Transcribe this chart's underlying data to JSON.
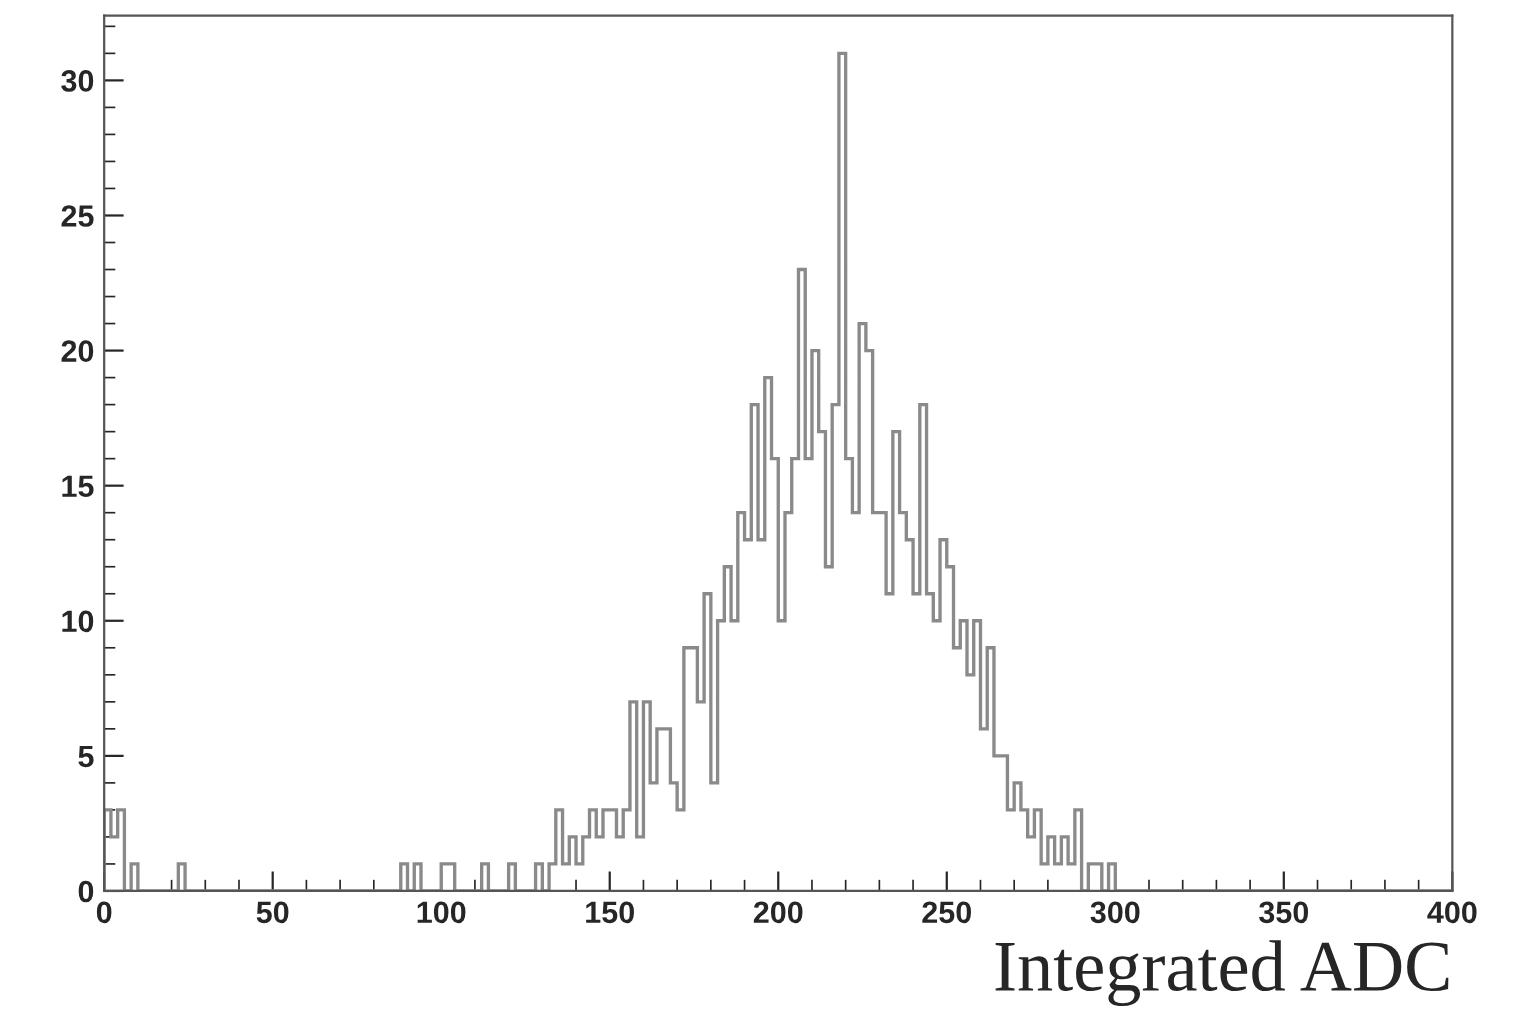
{
  "chart_data": {
    "type": "histogram",
    "xlabel": "Integrated ADC",
    "color": "#8a8a8a",
    "bins": [
      0,
      2,
      4,
      6,
      8,
      10,
      12,
      14,
      16,
      18,
      20,
      22,
      24,
      26,
      28,
      30,
      32,
      34,
      36,
      38,
      40,
      42,
      44,
      46,
      48,
      50,
      52,
      54,
      56,
      58,
      60,
      62,
      64,
      66,
      68,
      70,
      72,
      74,
      76,
      78,
      80,
      82,
      84,
      86,
      88,
      90,
      92,
      94,
      96,
      98,
      100,
      102,
      104,
      106,
      108,
      110,
      112,
      114,
      116,
      118,
      120,
      122,
      124,
      126,
      128,
      130,
      132,
      134,
      136,
      138,
      140,
      142,
      144,
      146,
      148,
      150,
      152,
      154,
      156,
      158,
      160,
      162,
      164,
      166,
      168,
      170,
      172,
      174,
      176,
      178,
      180,
      182,
      184,
      186,
      188,
      190,
      192,
      194,
      196,
      198,
      200,
      202,
      204,
      206,
      208,
      210,
      212,
      214,
      216,
      218,
      220,
      222,
      224,
      226,
      228,
      230,
      232,
      234,
      236,
      238,
      240,
      242,
      244,
      246,
      248,
      250,
      252,
      254,
      256,
      258,
      260,
      262,
      264,
      266,
      268,
      270,
      272,
      274,
      276,
      278,
      280,
      282,
      284,
      286,
      288,
      290,
      292,
      294,
      296,
      298,
      300,
      302,
      304,
      306,
      308,
      310,
      312,
      314,
      316,
      318,
      320,
      322,
      324,
      326,
      328,
      330,
      332,
      334,
      336,
      338,
      340,
      342,
      344,
      346,
      348,
      350,
      352,
      354,
      356,
      358,
      360,
      362,
      364,
      366,
      368,
      370,
      372,
      374,
      376,
      378,
      380,
      382,
      384,
      386,
      388,
      390,
      392,
      394,
      396,
      398,
      400
    ],
    "values": [
      3,
      2,
      3,
      0,
      1,
      0,
      0,
      0,
      0,
      0,
      0,
      1,
      0,
      0,
      0,
      0,
      0,
      0,
      0,
      0,
      0,
      0,
      0,
      0,
      0,
      0,
      0,
      0,
      0,
      0,
      0,
      0,
      0,
      0,
      0,
      0,
      0,
      0,
      0,
      0,
      0,
      0,
      0,
      0,
      1,
      0,
      1,
      0,
      0,
      0,
      1,
      1,
      0,
      0,
      0,
      0,
      1,
      0,
      0,
      0,
      1,
      0,
      0,
      0,
      1,
      0,
      1,
      3,
      1,
      2,
      1,
      2,
      3,
      2,
      3,
      3,
      2,
      3,
      7,
      2,
      7,
      4,
      6,
      6,
      4,
      3,
      9,
      9,
      7,
      11,
      4,
      10,
      12,
      10,
      14,
      13,
      18,
      13,
      19,
      16,
      10,
      14,
      16,
      23,
      16,
      20,
      17,
      12,
      18,
      31,
      16,
      14,
      21,
      20,
      14,
      14,
      11,
      17,
      14,
      13,
      11,
      18,
      11,
      10,
      13,
      12,
      9,
      10,
      8,
      10,
      6,
      9,
      5,
      5,
      3,
      4,
      3,
      2,
      3,
      1,
      2,
      1,
      2,
      1,
      3,
      0,
      1,
      1,
      0,
      1,
      0,
      0,
      0,
      0,
      0,
      0,
      0,
      0,
      0,
      0,
      0,
      0,
      0,
      0,
      0,
      0,
      0,
      0,
      0,
      0,
      0,
      0,
      0,
      0,
      0,
      0,
      0,
      0,
      0,
      0,
      0,
      0,
      0,
      0,
      0,
      0,
      0,
      0,
      0,
      0,
      0,
      0,
      0,
      0,
      0,
      0,
      0,
      0,
      0,
      0
    ],
    "xlim": [
      0,
      400
    ],
    "ylim": [
      0,
      32.4
    ],
    "xticks": [
      0,
      50,
      100,
      150,
      200,
      250,
      300,
      350,
      400
    ],
    "yticks": [
      0,
      5,
      10,
      15,
      20,
      25,
      30
    ],
    "grid": false
  }
}
